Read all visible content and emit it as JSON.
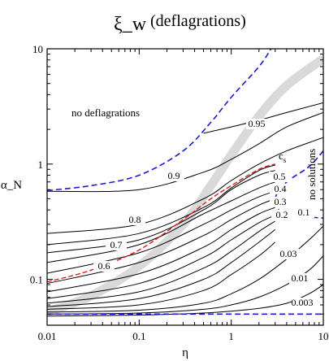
{
  "chart_data": {
    "type": "line",
    "title": "ξ_w",
    "title_suffix": "(deflagrations)",
    "xlabel": "η",
    "ylabel": "α_N",
    "xscale": "log",
    "yscale": "log",
    "xlim": [
      0.01,
      10
    ],
    "ylim": [
      0.04,
      10
    ],
    "x_ticks": [
      {
        "value": 0.01,
        "label": "0.01"
      },
      {
        "value": 0.1,
        "label": "0.1"
      },
      {
        "value": 1,
        "label": "1"
      },
      {
        "value": 10,
        "label": "10"
      }
    ],
    "y_ticks": [
      {
        "value": 0.1,
        "label": "0.1"
      },
      {
        "value": 1,
        "label": "1"
      },
      {
        "value": 10,
        "label": "10"
      }
    ],
    "grid": false,
    "region_labels": {
      "no_deflagrations": "no deflagrations",
      "no_solutions": "no solutions"
    },
    "cs_label": "c",
    "cs_subscript": "s",
    "colors": {
      "contour": "#000000",
      "boundary": "#1a1ad6",
      "cs_curve": "#e01a1a",
      "band": "#d9d9d9"
    },
    "contours": [
      {
        "label": "0.003",
        "points": [
          [
            0.01,
            0.048
          ],
          [
            0.1,
            0.049
          ],
          [
            0.5,
            0.051
          ],
          [
            1,
            0.053
          ],
          [
            2,
            0.056
          ],
          [
            4,
            0.062
          ],
          [
            7,
            0.075
          ],
          [
            10,
            0.09
          ]
        ]
      },
      {
        "label": "0.01",
        "points": [
          [
            0.01,
            0.05
          ],
          [
            0.1,
            0.051
          ],
          [
            0.5,
            0.055
          ],
          [
            1,
            0.06
          ],
          [
            2,
            0.07
          ],
          [
            4,
            0.09
          ],
          [
            7,
            0.12
          ],
          [
            10,
            0.16
          ]
        ]
      },
      {
        "label": "0.03",
        "points": [
          [
            0.01,
            0.052
          ],
          [
            0.1,
            0.054
          ],
          [
            0.5,
            0.062
          ],
          [
            1,
            0.075
          ],
          [
            2,
            0.1
          ],
          [
            4,
            0.15
          ],
          [
            7,
            0.22
          ],
          [
            10,
            0.29
          ]
        ]
      },
      {
        "label": "",
        "points": [
          [
            0.01,
            0.055
          ],
          [
            0.1,
            0.06
          ],
          [
            0.5,
            0.08
          ],
          [
            1,
            0.11
          ],
          [
            2,
            0.16
          ],
          [
            3,
            0.21
          ]
        ]
      },
      {
        "label": "",
        "points": [
          [
            0.01,
            0.058
          ],
          [
            0.1,
            0.068
          ],
          [
            0.5,
            0.1
          ],
          [
            1,
            0.14
          ],
          [
            2,
            0.21
          ],
          [
            3,
            0.27
          ]
        ]
      },
      {
        "label": "",
        "points": [
          [
            0.01,
            0.062
          ],
          [
            0.1,
            0.078
          ],
          [
            0.5,
            0.125
          ],
          [
            1,
            0.175
          ],
          [
            2,
            0.26
          ],
          [
            3,
            0.32
          ]
        ]
      },
      {
        "label": "0.1",
        "points": [
          [
            0.01,
            0.068
          ],
          [
            0.1,
            0.092
          ],
          [
            0.5,
            0.155
          ],
          [
            1,
            0.22
          ],
          [
            2,
            0.31
          ],
          [
            3,
            0.36
          ]
        ]
      },
      {
        "label": "0.2",
        "points": [
          [
            0.01,
            0.078
          ],
          [
            0.1,
            0.112
          ],
          [
            0.5,
            0.19
          ],
          [
            1,
            0.27
          ],
          [
            2,
            0.37
          ],
          [
            3,
            0.42
          ]
        ]
      },
      {
        "label": "0.3",
        "points": [
          [
            0.01,
            0.092
          ],
          [
            0.1,
            0.14
          ],
          [
            0.5,
            0.24
          ],
          [
            1,
            0.33
          ],
          [
            2,
            0.44
          ],
          [
            3,
            0.5
          ]
        ]
      },
      {
        "label": "0.4",
        "points": [
          [
            0.01,
            0.113
          ],
          [
            0.1,
            0.17
          ],
          [
            0.5,
            0.3
          ],
          [
            1,
            0.4
          ],
          [
            2,
            0.52
          ],
          [
            3,
            0.58
          ]
        ]
      },
      {
        "label": "0.5",
        "points": [
          [
            0.01,
            0.14
          ],
          [
            0.1,
            0.2
          ],
          [
            0.5,
            0.37
          ],
          [
            1,
            0.48
          ],
          [
            2,
            0.62
          ],
          [
            3,
            0.7
          ]
        ]
      },
      {
        "label": "0.6",
        "points": [
          [
            0.01,
            0.17
          ],
          [
            0.1,
            0.22
          ],
          [
            0.5,
            0.4
          ],
          [
            1,
            0.6
          ],
          [
            2,
            0.8
          ],
          [
            3,
            0.88
          ]
        ]
      },
      {
        "label": "0.7",
        "points": [
          [
            0.01,
            0.2
          ],
          [
            0.1,
            0.25
          ],
          [
            0.5,
            0.42
          ],
          [
            1,
            0.62
          ],
          [
            2,
            0.88
          ],
          [
            3,
            0.98
          ]
        ]
      },
      {
        "label": "0.8",
        "points": [
          [
            0.01,
            0.25
          ],
          [
            0.1,
            0.3
          ],
          [
            0.5,
            0.5
          ],
          [
            1,
            0.72
          ],
          [
            2,
            1.0
          ],
          [
            4,
            1.3
          ],
          [
            10,
            1.7
          ]
        ]
      },
      {
        "label": "0.9",
        "points": [
          [
            0.01,
            0.58
          ],
          [
            0.1,
            0.6
          ],
          [
            0.5,
            0.85
          ],
          [
            1,
            1.1
          ],
          [
            2,
            1.5
          ],
          [
            4,
            2.1
          ],
          [
            10,
            2.8
          ]
        ]
      },
      {
        "label": "0.95",
        "points": [
          [
            0.5,
            1.85
          ],
          [
            1,
            2.1
          ],
          [
            2,
            2.4
          ],
          [
            4,
            2.8
          ],
          [
            10,
            3.4
          ]
        ]
      }
    ],
    "boundary_upper": {
      "points": [
        [
          0.01,
          0.59
        ],
        [
          0.03,
          0.65
        ],
        [
          0.1,
          0.8
        ],
        [
          0.3,
          1.3
        ],
        [
          0.6,
          2.3
        ],
        [
          1,
          3.8
        ],
        [
          2,
          7
        ],
        [
          2.7,
          10
        ]
      ]
    },
    "boundary_lower": {
      "points": [
        [
          0.01,
          0.05
        ],
        [
          10,
          0.05
        ]
      ]
    },
    "boundary_no_solutions": {
      "points": [
        [
          10,
          1.3
        ],
        [
          7,
          0.95
        ],
        [
          4.5,
          0.75
        ],
        [
          3.3,
          0.6
        ],
        [
          3.0,
          0.47
        ],
        [
          3.4,
          0.39
        ],
        [
          4.5,
          0.36
        ],
        [
          6,
          0.35
        ],
        [
          10,
          0.34
        ]
      ]
    },
    "cs_curve": {
      "points": [
        [
          0.01,
          0.095
        ],
        [
          0.03,
          0.12
        ],
        [
          0.1,
          0.18
        ],
        [
          0.3,
          0.33
        ],
        [
          0.6,
          0.5
        ],
        [
          1,
          0.65
        ],
        [
          2,
          0.9
        ],
        [
          3,
          1.0
        ]
      ]
    },
    "band": {
      "points": [
        [
          0.01,
          0.052
        ],
        [
          0.03,
          0.072
        ],
        [
          0.1,
          0.13
        ],
        [
          0.3,
          0.3
        ],
        [
          0.6,
          0.65
        ],
        [
          1,
          1.2
        ],
        [
          2,
          2.6
        ],
        [
          4,
          4.8
        ],
        [
          10,
          8.2
        ]
      ]
    }
  }
}
